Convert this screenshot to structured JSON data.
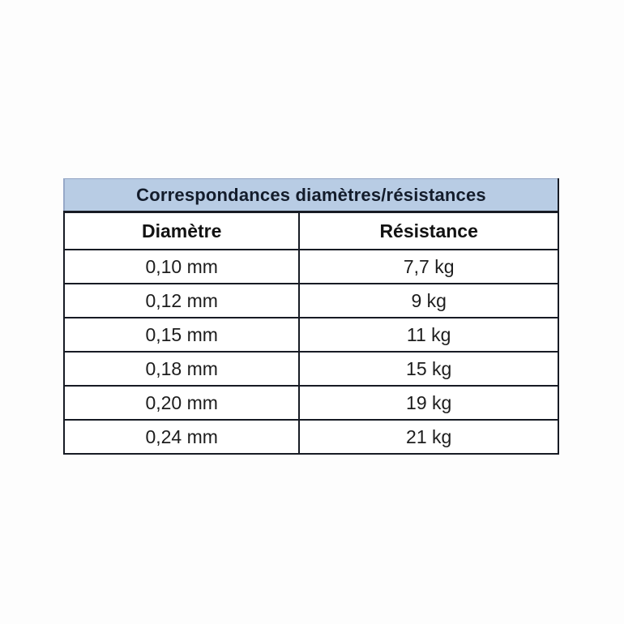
{
  "page": {
    "background_color": "#fdfdfd"
  },
  "table": {
    "title": "Correspondances diamètres/résistances",
    "columns": {
      "diameter_label": "Diamètre",
      "resistance_label": "Résistance"
    },
    "rows": [
      {
        "diameter": "0,10 mm",
        "resistance": "7,7 kg"
      },
      {
        "diameter": "0,12 mm",
        "resistance": "9 kg"
      },
      {
        "diameter": "0,15 mm",
        "resistance": "11 kg"
      },
      {
        "diameter": "0,18 mm",
        "resistance": "15 kg"
      },
      {
        "diameter": "0,20 mm",
        "resistance": "19 kg"
      },
      {
        "diameter": "0,24 mm",
        "resistance": "21 kg"
      }
    ],
    "colors": {
      "title_background": "#b8cce4",
      "title_text": "#131c2b",
      "border": "#171b24",
      "cell_text": "#1d1d1d"
    }
  }
}
